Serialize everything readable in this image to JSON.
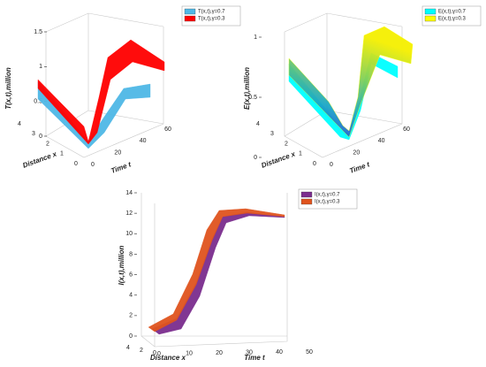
{
  "chart_data": [
    {
      "type": "surface3d",
      "zlabel": "T(x,t),million",
      "xlabel": "Distance x",
      "ylabel": "Time t",
      "series": [
        {
          "name": "T(x,t),γ=0.7",
          "color": "#4fb8e6"
        },
        {
          "name": "T(x,t),γ=0.3",
          "color": "#ff0000"
        }
      ],
      "zticks": [
        0,
        0.5,
        1,
        1.5
      ],
      "xticks": [
        0,
        1,
        2,
        3,
        4
      ],
      "yticks": [
        0,
        20,
        40,
        60
      ]
    },
    {
      "type": "surface3d",
      "zlabel": "E(x,t),million",
      "xlabel": "Distance x",
      "ylabel": "Time t",
      "series": [
        {
          "name": "E(x,t),γ=0.7",
          "color": "#00ffff"
        },
        {
          "name": "E(x,t),γ=0.3",
          "color": "#ffff00"
        }
      ],
      "zticks": [
        0,
        0.5,
        1
      ],
      "xticks": [
        0,
        1,
        2,
        3,
        4
      ],
      "yticks": [
        0,
        20,
        40,
        60
      ]
    },
    {
      "type": "surface3d",
      "zlabel": "I(x,t),million",
      "xlabel": "Distance x",
      "ylabel": "Time t",
      "series": [
        {
          "name": "I(x,t),γ=0.7",
          "color": "#7b2d8e"
        },
        {
          "name": "I(x,t),γ=0.3",
          "color": "#e0541e"
        }
      ],
      "zticks": [
        0,
        2,
        4,
        6,
        8,
        10,
        12,
        14
      ],
      "xticks": [
        0,
        2,
        4
      ],
      "yticks": [
        0,
        10,
        20,
        30,
        40,
        50
      ]
    }
  ]
}
